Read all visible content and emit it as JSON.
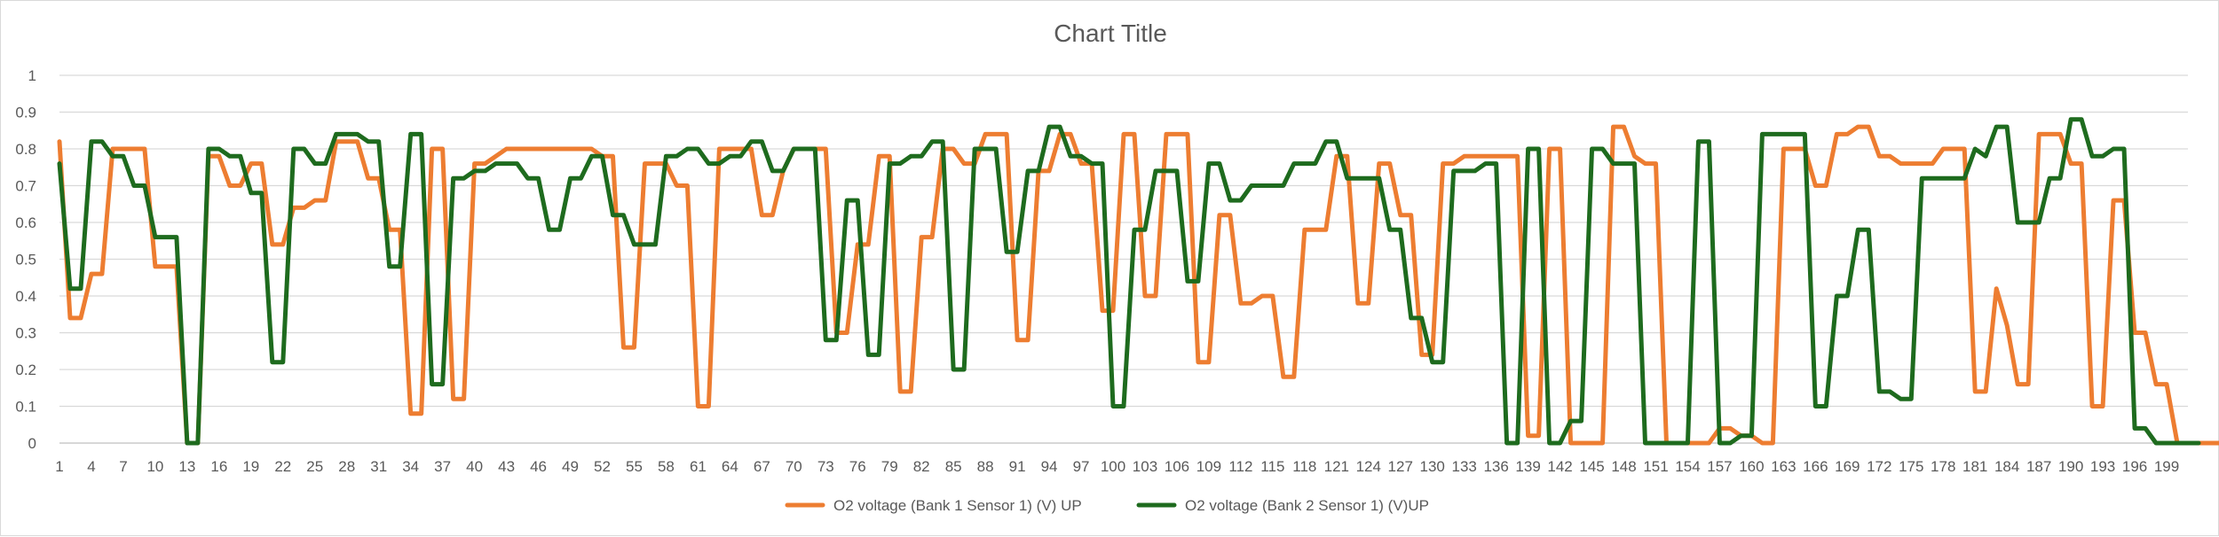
{
  "chart_data": {
    "type": "line",
    "title": "Chart Title",
    "xlabel": "",
    "ylabel": "",
    "x_tick_labels": [
      "1",
      "4",
      "7",
      "10",
      "13",
      "16",
      "19",
      "22",
      "25",
      "28",
      "31",
      "34",
      "37",
      "40",
      "43",
      "46",
      "49",
      "52",
      "55",
      "58",
      "61",
      "64",
      "67",
      "70",
      "73",
      "76",
      "79",
      "82",
      "85",
      "88",
      "91",
      "94",
      "97",
      "100",
      "103",
      "106",
      "109",
      "112",
      "115",
      "118",
      "121",
      "124",
      "127",
      "130",
      "133",
      "136",
      "139",
      "142",
      "145",
      "148",
      "151",
      "154",
      "157",
      "160",
      "163",
      "166",
      "169",
      "172",
      "175",
      "178",
      "181",
      "184",
      "187",
      "190",
      "193",
      "196",
      "199"
    ],
    "y_tick_labels": [
      "0",
      "0.1",
      "0.2",
      "0.3",
      "0.4",
      "0.5",
      "0.6",
      "0.7",
      "0.8",
      "0.9",
      "1"
    ],
    "xlim": [
      1,
      201
    ],
    "ylim": [
      0,
      1
    ],
    "grid": true,
    "legend_position": "bottom",
    "series": [
      {
        "name": "O2 voltage (Bank 1  Sensor 1) (V) UP",
        "color": "#ED7D31",
        "values": [
          0.82,
          0.34,
          0.34,
          0.46,
          0.46,
          0.8,
          0.8,
          0.8,
          0.8,
          0.48,
          0.48,
          0.48,
          0,
          0,
          0.78,
          0.78,
          0.7,
          0.7,
          0.76,
          0.76,
          0.54,
          0.54,
          0.64,
          0.64,
          0.66,
          0.66,
          0.82,
          0.82,
          0.82,
          0.72,
          0.72,
          0.58,
          0.58,
          0.08,
          0.08,
          0.8,
          0.8,
          0.12,
          0.12,
          0.76,
          0.76,
          0.78,
          0.8,
          0.8,
          0.8,
          0.8,
          0.8,
          0.8,
          0.8,
          0.8,
          0.8,
          0.78,
          0.78,
          0.26,
          0.26,
          0.76,
          0.76,
          0.76,
          0.7,
          0.7,
          0.1,
          0.1,
          0.8,
          0.8,
          0.8,
          0.8,
          0.62,
          0.62,
          0.74,
          0.8,
          0.8,
          0.8,
          0.8,
          0.3,
          0.3,
          0.54,
          0.54,
          0.78,
          0.78,
          0.14,
          0.14,
          0.56,
          0.56,
          0.8,
          0.8,
          0.76,
          0.76,
          0.84,
          0.84,
          0.84,
          0.28,
          0.28,
          0.74,
          0.74,
          0.84,
          0.84,
          0.76,
          0.76,
          0.36,
          0.36,
          0.84,
          0.84,
          0.4,
          0.4,
          0.84,
          0.84,
          0.84,
          0.22,
          0.22,
          0.62,
          0.62,
          0.38,
          0.38,
          0.4,
          0.4,
          0.18,
          0.18,
          0.58,
          0.58,
          0.58,
          0.78,
          0.78,
          0.38,
          0.38,
          0.76,
          0.76,
          0.62,
          0.62,
          0.24,
          0.24,
          0.76,
          0.76,
          0.78,
          0.78,
          0.78,
          0.78,
          0.78,
          0.78,
          0.02,
          0.02,
          0.8,
          0.8,
          0,
          0,
          0,
          0,
          0.86,
          0.86,
          0.78,
          0.76,
          0.76,
          0,
          0,
          0,
          0,
          0,
          0.04,
          0.04,
          0.02,
          0.02,
          0,
          0,
          0.8,
          0.8,
          0.8,
          0.7,
          0.7,
          0.84,
          0.84,
          0.86,
          0.86,
          0.78,
          0.78,
          0.76,
          0.76,
          0.76,
          0.76,
          0.8,
          0.8,
          0.8,
          0.14,
          0.14,
          0.42,
          0.32,
          0.16,
          0.16,
          0.84,
          0.84,
          0.84,
          0.76,
          0.76,
          0.1,
          0.1,
          0.66,
          0.66,
          0.3,
          0.3,
          0.16,
          0.16,
          0,
          0,
          0,
          0,
          0
        ]
      },
      {
        "name": "O2 voltage (Bank 2  Sensor 1) (V)UP",
        "color": "#1E6B1E",
        "values": [
          0.76,
          0.42,
          0.42,
          0.82,
          0.82,
          0.78,
          0.78,
          0.7,
          0.7,
          0.56,
          0.56,
          0.56,
          0,
          0,
          0.8,
          0.8,
          0.78,
          0.78,
          0.68,
          0.68,
          0.22,
          0.22,
          0.8,
          0.8,
          0.76,
          0.76,
          0.84,
          0.84,
          0.84,
          0.82,
          0.82,
          0.48,
          0.48,
          0.84,
          0.84,
          0.16,
          0.16,
          0.72,
          0.72,
          0.74,
          0.74,
          0.76,
          0.76,
          0.76,
          0.72,
          0.72,
          0.58,
          0.58,
          0.72,
          0.72,
          0.78,
          0.78,
          0.62,
          0.62,
          0.54,
          0.54,
          0.54,
          0.78,
          0.78,
          0.8,
          0.8,
          0.76,
          0.76,
          0.78,
          0.78,
          0.82,
          0.82,
          0.74,
          0.74,
          0.8,
          0.8,
          0.8,
          0.28,
          0.28,
          0.66,
          0.66,
          0.24,
          0.24,
          0.76,
          0.76,
          0.78,
          0.78,
          0.82,
          0.82,
          0.2,
          0.2,
          0.8,
          0.8,
          0.8,
          0.52,
          0.52,
          0.74,
          0.74,
          0.86,
          0.86,
          0.78,
          0.78,
          0.76,
          0.76,
          0.1,
          0.1,
          0.58,
          0.58,
          0.74,
          0.74,
          0.74,
          0.44,
          0.44,
          0.76,
          0.76,
          0.66,
          0.66,
          0.7,
          0.7,
          0.7,
          0.7,
          0.76,
          0.76,
          0.76,
          0.82,
          0.82,
          0.72,
          0.72,
          0.72,
          0.72,
          0.58,
          0.58,
          0.34,
          0.34,
          0.22,
          0.22,
          0.74,
          0.74,
          0.74,
          0.76,
          0.76,
          0,
          0,
          0.8,
          0.8,
          0,
          0,
          0.06,
          0.06,
          0.8,
          0.8,
          0.76,
          0.76,
          0.76,
          0,
          0,
          0,
          0,
          0,
          0.82,
          0.82,
          0,
          0,
          0.02,
          0.02,
          0.84,
          0.84,
          0.84,
          0.84,
          0.84,
          0.1,
          0.1,
          0.4,
          0.4,
          0.58,
          0.58,
          0.14,
          0.14,
          0.12,
          0.12,
          0.72,
          0.72,
          0.72,
          0.72,
          0.72,
          0.8,
          0.78,
          0.86,
          0.86,
          0.6,
          0.6,
          0.6,
          0.72,
          0.72,
          0.88,
          0.88,
          0.78,
          0.78,
          0.8,
          0.8,
          0.04,
          0.04,
          0,
          0,
          0,
          0,
          0
        ]
      }
    ]
  }
}
